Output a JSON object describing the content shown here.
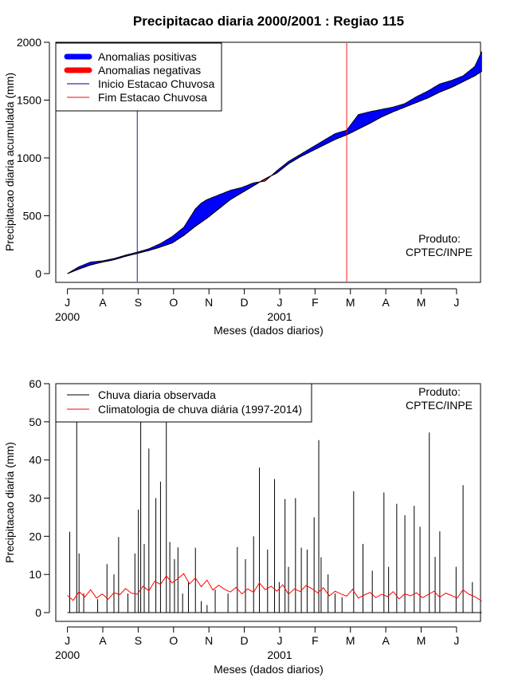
{
  "chart_data": [
    {
      "type": "area",
      "title": "Precipitacao diaria 2000/2001 : Regiao 115",
      "xlabel": "Meses (dados diarios)",
      "ylabel": "Precipitacao diaria acumulada (mm)",
      "ylim": [
        0,
        2000
      ],
      "yticks": [
        "0",
        "500",
        "1000",
        "1500",
        "2000"
      ],
      "month_ticks": [
        "J",
        "A",
        "S",
        "O",
        "N",
        "D",
        "J",
        "F",
        "M",
        "A",
        "M",
        "J"
      ],
      "year_labels": [
        "2000",
        "2001"
      ],
      "x_range_days": [
        -10,
        355
      ],
      "observed_cumulative": {
        "day": [
          0,
          10,
          20,
          30,
          40,
          50,
          60,
          70,
          80,
          90,
          100,
          105,
          110,
          115,
          120,
          130,
          140,
          150,
          160,
          170,
          180,
          190,
          200,
          210,
          220,
          230,
          240,
          250,
          260,
          270,
          280,
          290,
          300,
          310,
          320,
          330,
          340,
          350,
          356
        ],
        "value": [
          0,
          60,
          100,
          110,
          130,
          160,
          185,
          215,
          260,
          320,
          400,
          480,
          560,
          610,
          640,
          680,
          720,
          745,
          785,
          800,
          890,
          970,
          1030,
          1090,
          1150,
          1210,
          1240,
          1375,
          1400,
          1420,
          1440,
          1470,
          1530,
          1580,
          1640,
          1670,
          1710,
          1790,
          1920
        ]
      },
      "climatology_cumulative": {
        "day": [
          0,
          10,
          20,
          30,
          40,
          50,
          60,
          70,
          80,
          90,
          100,
          110,
          120,
          130,
          140,
          150,
          160,
          170,
          180,
          190,
          200,
          210,
          220,
          230,
          240,
          250,
          260,
          270,
          280,
          290,
          300,
          310,
          320,
          330,
          340,
          350,
          356
        ],
        "value": [
          0,
          40,
          75,
          100,
          120,
          150,
          175,
          200,
          230,
          265,
          330,
          410,
          480,
          560,
          640,
          700,
          760,
          820,
          870,
          950,
          1010,
          1060,
          1110,
          1160,
          1200,
          1250,
          1300,
          1355,
          1400,
          1440,
          1480,
          1520,
          1570,
          1610,
          1660,
          1710,
          1750
        ]
      },
      "inicio_estacao_chuvosa_day": 60,
      "fim_estacao_chuvosa_day": 240,
      "legend": {
        "position": "top-left",
        "entries": [
          "Anomalias positivas",
          "Anomalias negativas",
          "Inicio Estacao Chuvosa",
          "Fim Estacao Chuvosa"
        ]
      },
      "annotation": "Produto:\nCPTEC/INPE",
      "colors": {
        "positive": "#0000ff",
        "negative": "#ff0000",
        "inicio": "#00008b",
        "fim": "#ff0000"
      }
    },
    {
      "type": "bar",
      "title": "",
      "xlabel": "Meses (dados diarios)",
      "ylabel": "Precipitacao diaria (mm)",
      "ylim": [
        0,
        60
      ],
      "yticks": [
        "0",
        "10",
        "20",
        "30",
        "40",
        "50",
        "60"
      ],
      "month_ticks": [
        "J",
        "A",
        "S",
        "O",
        "N",
        "D",
        "J",
        "F",
        "M",
        "A",
        "M",
        "J"
      ],
      "year_labels": [
        "2000",
        "2001"
      ],
      "x_range_days": [
        -10,
        355
      ],
      "observed_daily": {
        "day": [
          2,
          8,
          10,
          14,
          26,
          34,
          40,
          44,
          52,
          58,
          61,
          63,
          66,
          70,
          76,
          80,
          85,
          88,
          92,
          95,
          99,
          104,
          110,
          115,
          120,
          127,
          138,
          146,
          153,
          160,
          165,
          172,
          178,
          182,
          187,
          190,
          196,
          201,
          206,
          212,
          216,
          218,
          224,
          230,
          236,
          246,
          254,
          262,
          272,
          276,
          283,
          290,
          298,
          303,
          311,
          316,
          320,
          334,
          340,
          348
        ],
        "value": [
          21.2,
          60,
          15.5,
          5,
          3.5,
          12.7,
          10,
          19.8,
          5,
          15.5,
          27,
          60,
          18,
          43,
          30,
          34.3,
          60,
          18.5,
          14,
          17.1,
          5,
          8,
          17,
          3,
          2,
          6,
          5,
          17.2,
          14,
          20,
          38,
          16.5,
          35,
          8,
          29.8,
          12,
          30,
          17,
          16.5,
          25,
          45.2,
          14.5,
          10,
          5,
          4,
          31.8,
          18,
          11,
          31.5,
          12,
          28.5,
          25.5,
          28,
          22.5,
          47.2,
          14.6,
          21.3,
          12,
          33.4,
          8
        ]
      },
      "climatology_daily": {
        "day": [
          0,
          5,
          10,
          15,
          20,
          25,
          30,
          35,
          40,
          45,
          50,
          55,
          60,
          65,
          70,
          75,
          80,
          85,
          90,
          95,
          100,
          105,
          110,
          115,
          120,
          125,
          130,
          135,
          140,
          145,
          150,
          155,
          160,
          165,
          170,
          175,
          180,
          185,
          190,
          195,
          200,
          205,
          210,
          215,
          220,
          225,
          230,
          235,
          240,
          245,
          250,
          255,
          260,
          265,
          270,
          275,
          280,
          285,
          290,
          295,
          300,
          305,
          310,
          315,
          320,
          325,
          330,
          335,
          340,
          345,
          350,
          356
        ],
        "value": [
          4.5,
          3.2,
          5.5,
          4.1,
          6.0,
          3.8,
          4.9,
          3.5,
          5.2,
          4.7,
          6.3,
          5.1,
          4.8,
          6.9,
          5.7,
          8.2,
          7.4,
          9.6,
          7.8,
          8.9,
          10.2,
          7.5,
          9.1,
          6.8,
          8.5,
          5.9,
          7.2,
          6.1,
          5.4,
          6.6,
          4.9,
          6.2,
          5.3,
          7.8,
          6.0,
          6.9,
          5.6,
          7.3,
          4.8,
          6.2,
          5.5,
          7.1,
          6.3,
          5.2,
          6.5,
          4.4,
          5.6,
          4.9,
          4.3,
          6.1,
          3.8,
          4.6,
          5.3,
          3.9,
          4.8,
          4.2,
          5.5,
          3.6,
          4.9,
          4.4,
          5.2,
          3.9,
          4.7,
          5.6,
          4.0,
          5.1,
          4.5,
          3.8,
          6.0,
          4.8,
          4.2,
          3.0
        ]
      },
      "legend": {
        "position": "top-left",
        "entries": [
          "Chuva diaria observada",
          "Climatologia de chuva diária (1997-2014)"
        ]
      },
      "annotation": "Produto:\nCPTEC/INPE",
      "colors": {
        "observed": "#000000",
        "climatology": "#ff0000"
      }
    }
  ]
}
